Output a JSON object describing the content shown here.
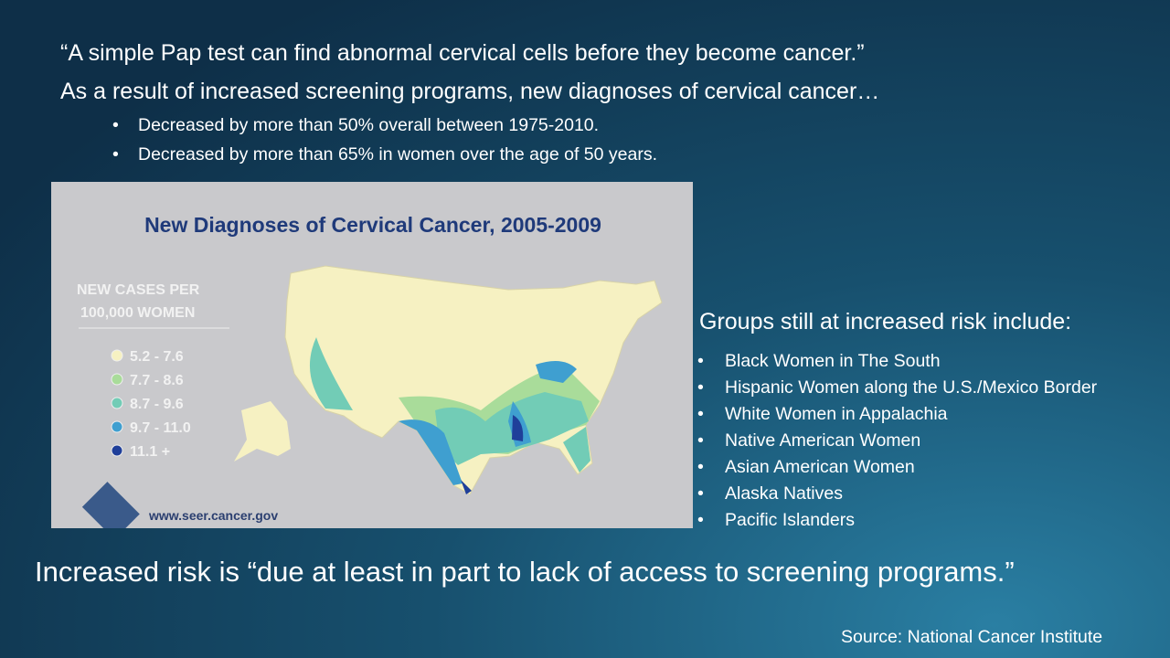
{
  "quote": "“A simple Pap test can find abnormal cervical cells before they become cancer.”",
  "intro": "As a result of increased screening programs, new diagnoses of cervical cancer…",
  "bullets": [
    "Decreased by more than 50% overall between 1975-2010.",
    "Decreased by more than 65% in women over the age of 50 years."
  ],
  "map": {
    "title": "New Diagnoses of Cervical Cancer, 2005-2009",
    "legend_title": [
      "NEW CASES PER",
      "100,000 WOMEN"
    ],
    "legend": [
      {
        "label": "5.2 - 7.6",
        "color": "#f6f1c2"
      },
      {
        "label": "7.7 - 8.6",
        "color": "#a9dc9a"
      },
      {
        "label": "8.7 - 9.6",
        "color": "#72ccb6"
      },
      {
        "label": "9.7 - 11.0",
        "color": "#3f9fd0"
      },
      {
        "label": "11.1 +",
        "color": "#1f3f9a"
      }
    ],
    "source_url": "www.seer.cancer.gov"
  },
  "risk": {
    "heading": "Groups still at increased risk include:",
    "groups": [
      "Black Women in The South",
      "Hispanic Women along the U.S./Mexico Border",
      "White Women in Appalachia",
      "Native American Women",
      "Asian American Women",
      "Alaska Natives",
      "Pacific Islanders"
    ]
  },
  "conclusion": "Increased risk is “due at least in part to lack of access to screening programs.”",
  "source": "Source:  National Cancer Institute"
}
